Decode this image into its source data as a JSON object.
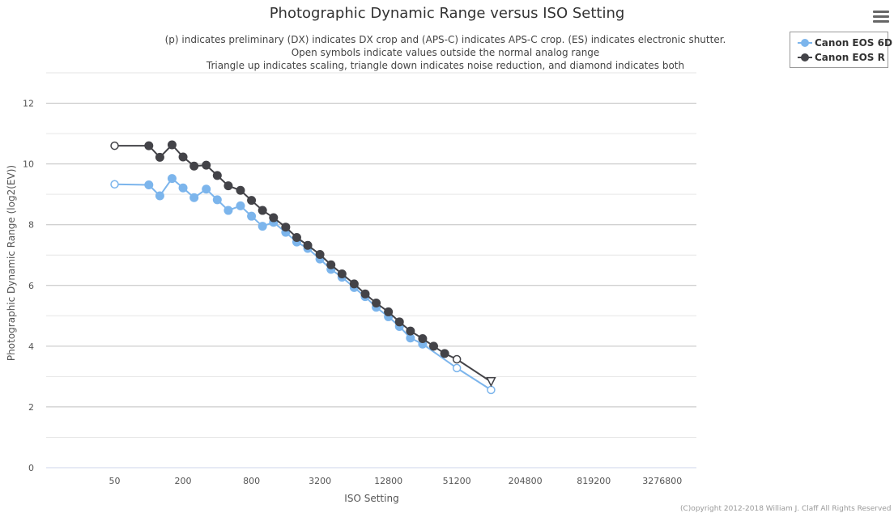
{
  "chart_data": {
    "type": "line",
    "title": "Photographic Dynamic Range versus ISO Setting",
    "subtitle_lines": [
      "(p) indicates preliminary (DX) indicates DX crop and (APS-C) indicates APS-C crop. (ES) indicates electronic shutter.",
      "Open symbols indicate values outside the normal analog range",
      "Triangle up indicates scaling, triangle down indicates noise reduction, and diamond indicates both"
    ],
    "xlabel": "ISO Setting",
    "ylabel": "Photographic Dynamic Range (log2(EV))",
    "x_scale": "log2",
    "x_ticks": [
      50,
      200,
      800,
      3200,
      12800,
      51200,
      204800,
      819200,
      3276800
    ],
    "x_tick_labels": [
      "50",
      "200",
      "800",
      "3200",
      "12800",
      "51200",
      "204800",
      "819200",
      "3276800"
    ],
    "ylim": [
      0,
      13
    ],
    "y_ticks": [
      0,
      2,
      4,
      6,
      8,
      10,
      12
    ],
    "grid": true,
    "legend_position": "top-right",
    "series": [
      {
        "name": "Canon EOS 6D",
        "color": "#7cb5ec",
        "points": [
          {
            "x": 50,
            "y": 9.33,
            "marker": "open-circle"
          },
          {
            "x": 100,
            "y": 9.31,
            "marker": "circle"
          },
          {
            "x": 125,
            "y": 8.95,
            "marker": "circle"
          },
          {
            "x": 160,
            "y": 9.52,
            "marker": "circle"
          },
          {
            "x": 200,
            "y": 9.21,
            "marker": "circle"
          },
          {
            "x": 250,
            "y": 8.89,
            "marker": "circle"
          },
          {
            "x": 320,
            "y": 9.17,
            "marker": "circle"
          },
          {
            "x": 400,
            "y": 8.82,
            "marker": "circle"
          },
          {
            "x": 500,
            "y": 8.47,
            "marker": "circle"
          },
          {
            "x": 640,
            "y": 8.62,
            "marker": "circle"
          },
          {
            "x": 800,
            "y": 8.28,
            "marker": "circle"
          },
          {
            "x": 1000,
            "y": 7.95,
            "marker": "circle"
          },
          {
            "x": 1250,
            "y": 8.08,
            "marker": "circle"
          },
          {
            "x": 1600,
            "y": 7.75,
            "marker": "circle"
          },
          {
            "x": 2000,
            "y": 7.43,
            "marker": "circle"
          },
          {
            "x": 2500,
            "y": 7.22,
            "marker": "circle"
          },
          {
            "x": 3200,
            "y": 6.87,
            "marker": "circle"
          },
          {
            "x": 4000,
            "y": 6.53,
            "marker": "circle"
          },
          {
            "x": 5000,
            "y": 6.27,
            "marker": "circle"
          },
          {
            "x": 6400,
            "y": 5.93,
            "marker": "circle"
          },
          {
            "x": 8000,
            "y": 5.63,
            "marker": "circle"
          },
          {
            "x": 10000,
            "y": 5.28,
            "marker": "circle"
          },
          {
            "x": 12800,
            "y": 4.97,
            "marker": "circle"
          },
          {
            "x": 16000,
            "y": 4.65,
            "marker": "circle"
          },
          {
            "x": 20000,
            "y": 4.27,
            "marker": "circle"
          },
          {
            "x": 25600,
            "y": 4.07,
            "marker": "circle"
          },
          {
            "x": 51200,
            "y": 3.28,
            "marker": "open-circle"
          },
          {
            "x": 102400,
            "y": 2.56,
            "marker": "open-circle"
          }
        ]
      },
      {
        "name": "Canon EOS R",
        "color": "#434348",
        "points": [
          {
            "x": 50,
            "y": 10.6,
            "marker": "open-circle"
          },
          {
            "x": 100,
            "y": 10.6,
            "marker": "circle"
          },
          {
            "x": 125,
            "y": 10.22,
            "marker": "circle"
          },
          {
            "x": 160,
            "y": 10.63,
            "marker": "circle"
          },
          {
            "x": 200,
            "y": 10.23,
            "marker": "circle"
          },
          {
            "x": 250,
            "y": 9.93,
            "marker": "circle"
          },
          {
            "x": 320,
            "y": 9.96,
            "marker": "circle"
          },
          {
            "x": 400,
            "y": 9.62,
            "marker": "circle"
          },
          {
            "x": 500,
            "y": 9.28,
            "marker": "circle"
          },
          {
            "x": 640,
            "y": 9.13,
            "marker": "circle"
          },
          {
            "x": 800,
            "y": 8.8,
            "marker": "circle"
          },
          {
            "x": 1000,
            "y": 8.47,
            "marker": "circle"
          },
          {
            "x": 1250,
            "y": 8.23,
            "marker": "circle"
          },
          {
            "x": 1600,
            "y": 7.92,
            "marker": "circle"
          },
          {
            "x": 2000,
            "y": 7.58,
            "marker": "circle"
          },
          {
            "x": 2500,
            "y": 7.32,
            "marker": "circle"
          },
          {
            "x": 3200,
            "y": 7.02,
            "marker": "circle"
          },
          {
            "x": 4000,
            "y": 6.68,
            "marker": "circle"
          },
          {
            "x": 5000,
            "y": 6.38,
            "marker": "circle"
          },
          {
            "x": 6400,
            "y": 6.05,
            "marker": "circle"
          },
          {
            "x": 8000,
            "y": 5.72,
            "marker": "circle"
          },
          {
            "x": 10000,
            "y": 5.42,
            "marker": "circle"
          },
          {
            "x": 12800,
            "y": 5.13,
            "marker": "circle"
          },
          {
            "x": 16000,
            "y": 4.8,
            "marker": "circle"
          },
          {
            "x": 20000,
            "y": 4.5,
            "marker": "circle"
          },
          {
            "x": 25600,
            "y": 4.25,
            "marker": "circle"
          },
          {
            "x": 32000,
            "y": 4.0,
            "marker": "circle"
          },
          {
            "x": 40000,
            "y": 3.76,
            "marker": "circle"
          },
          {
            "x": 51200,
            "y": 3.57,
            "marker": "open-circle"
          },
          {
            "x": 102400,
            "y": 2.83,
            "marker": "open-triangle-down"
          }
        ]
      }
    ]
  },
  "menu": {
    "icon": "hamburger-menu-icon"
  },
  "copyright": "(C)opyright 2012-2018 William J. Claff All Rights Reserved"
}
